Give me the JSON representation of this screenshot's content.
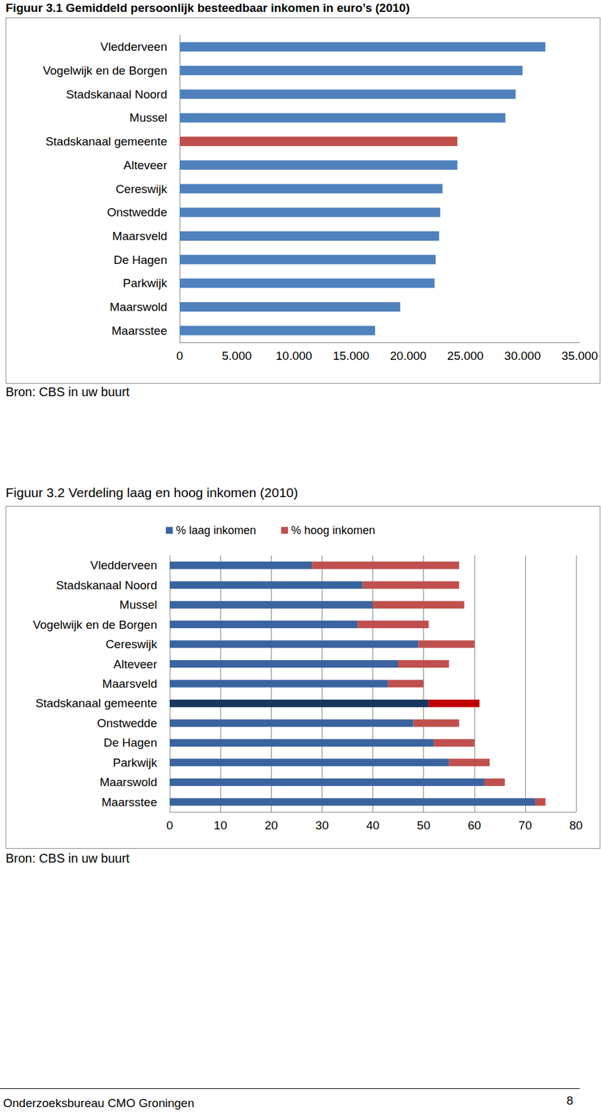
{
  "chart_data": [
    {
      "type": "bar",
      "title": "Figuur 3.1 Gemiddeld persoonlijk besteedbaar inkomen in euro’s (2010)",
      "annotations": [
        "Bron: CBS in uw buurt"
      ],
      "orientation": "horizontal",
      "categories": [
        "Vledderveen",
        "Vogelwijk en de Borgen",
        "Stadskanaal Noord",
        "Mussel",
        "Stadskanaal gemeente",
        "Alteveer",
        "Cereswijk",
        "Onstwedde",
        "Maarsveld",
        "De Hagen",
        "Parkwijk",
        "Maarswold",
        "Maarsstee"
      ],
      "values": [
        32000,
        30000,
        29400,
        28500,
        24300,
        24300,
        23000,
        22800,
        22700,
        22400,
        22300,
        19300,
        17100
      ],
      "colors": [
        "#4f81bd",
        "#4f81bd",
        "#4f81bd",
        "#4f81bd",
        "#c0504d",
        "#4f81bd",
        "#4f81bd",
        "#4f81bd",
        "#4f81bd",
        "#4f81bd",
        "#4f81bd",
        "#4f81bd",
        "#4f81bd"
      ],
      "xlim": [
        0,
        35000
      ],
      "xticks": [
        0,
        {
          "value": 5000,
          "label": "5.000"
        },
        {
          "value": 10000,
          "label": "10.000"
        },
        {
          "value": 15000,
          "label": "15.000"
        },
        {
          "value": 20000,
          "label": "20.000"
        },
        {
          "value": 25000,
          "label": "25.000"
        },
        {
          "value": 30000,
          "label": "30.000"
        },
        {
          "value": 35000,
          "label": "35.000"
        }
      ],
      "grid": false
    },
    {
      "type": "bar",
      "title": "Figuur 3.2 Verdeling laag en hoog inkomen (2010)",
      "annotations": [
        "Bron: CBS in uw buurt"
      ],
      "orientation": "horizontal",
      "stacked": true,
      "legend": "top",
      "categories": [
        "Vledderveen",
        "Stadskanaal Noord",
        "Mussel",
        "Vogelwijk en de Borgen",
        "Cereswijk",
        "Alteveer",
        "Maarsveld",
        "Stadskanaal gemeente",
        "Onstwedde",
        "De Hagen",
        "Parkwijk",
        "Maarswold",
        "Maarsstee"
      ],
      "series": [
        {
          "name": "% laag inkomen",
          "color": "#3a64a0",
          "colors": [
            "#3a64a0",
            "#3a64a0",
            "#3a64a0",
            "#3a64a0",
            "#3a64a0",
            "#3a64a0",
            "#3a64a0",
            "#17375e",
            "#3a64a0",
            "#3a64a0",
            "#3a64a0",
            "#3a64a0",
            "#3a64a0"
          ],
          "values": [
            28,
            38,
            40,
            37,
            49,
            45,
            43,
            51,
            48,
            52,
            55,
            62,
            72
          ]
        },
        {
          "name": "% hoog inkomen",
          "color": "#c0504d",
          "colors": [
            "#c0504d",
            "#c0504d",
            "#c0504d",
            "#c0504d",
            "#c0504d",
            "#c0504d",
            "#c0504d",
            "#c00000",
            "#c0504d",
            "#c0504d",
            "#c0504d",
            "#c0504d",
            "#c0504d"
          ],
          "values": [
            29,
            19,
            18,
            14,
            11,
            10,
            7,
            10,
            9,
            8,
            8,
            4,
            2
          ]
        }
      ],
      "xlim": [
        0,
        80
      ],
      "xticks": [
        0,
        10,
        20,
        30,
        40,
        50,
        60,
        70,
        80
      ],
      "grid": true
    }
  ],
  "footer": {
    "text": "Onderzoeksbureau CMO Groningen",
    "page": 8
  }
}
